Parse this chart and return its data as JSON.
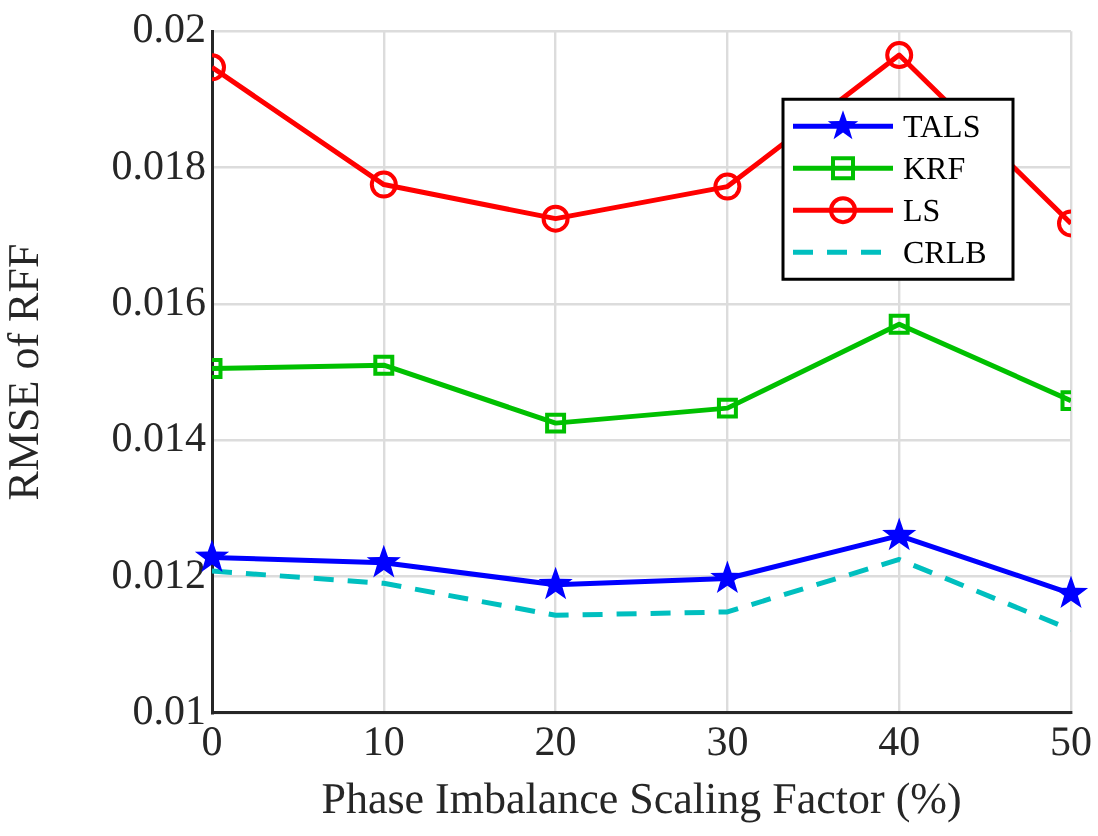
{
  "chart_data": {
    "type": "line",
    "xlabel": "Phase Imbalance Scaling Factor (%)",
    "ylabel": "RMSE of RFF",
    "x": [
      0,
      10,
      20,
      30,
      40,
      50
    ],
    "xlim": [
      0,
      50
    ],
    "xticks": [
      0,
      10,
      20,
      30,
      40,
      50
    ],
    "ylim": [
      0.01,
      0.02
    ],
    "yticks": [
      0.01,
      0.012,
      0.014,
      0.016,
      0.018,
      0.02
    ],
    "grid": true,
    "legend": "top right",
    "series": [
      {
        "name": "TALS",
        "color": "#0000ff",
        "marker": "star",
        "line_style": "solid",
        "values": [
          0.01228,
          0.0122,
          0.01188,
          0.01197,
          0.0126,
          0.01175
        ]
      },
      {
        "name": "KRF",
        "color": "#00c000",
        "marker": "square",
        "line_style": "solid",
        "values": [
          0.01505,
          0.0151,
          0.01425,
          0.01447,
          0.0157,
          0.01458
        ]
      },
      {
        "name": "LS",
        "color": "#ff0000",
        "marker": "circle",
        "line_style": "solid",
        "values": [
          0.01947,
          0.01775,
          0.01725,
          0.01772,
          0.01965,
          0.01718
        ]
      },
      {
        "name": "CRLB",
        "color": "#00bfbf",
        "marker": "none",
        "line_style": "dashed",
        "values": [
          0.01208,
          0.0119,
          0.01143,
          0.01148,
          0.01225,
          0.01122
        ]
      }
    ]
  }
}
